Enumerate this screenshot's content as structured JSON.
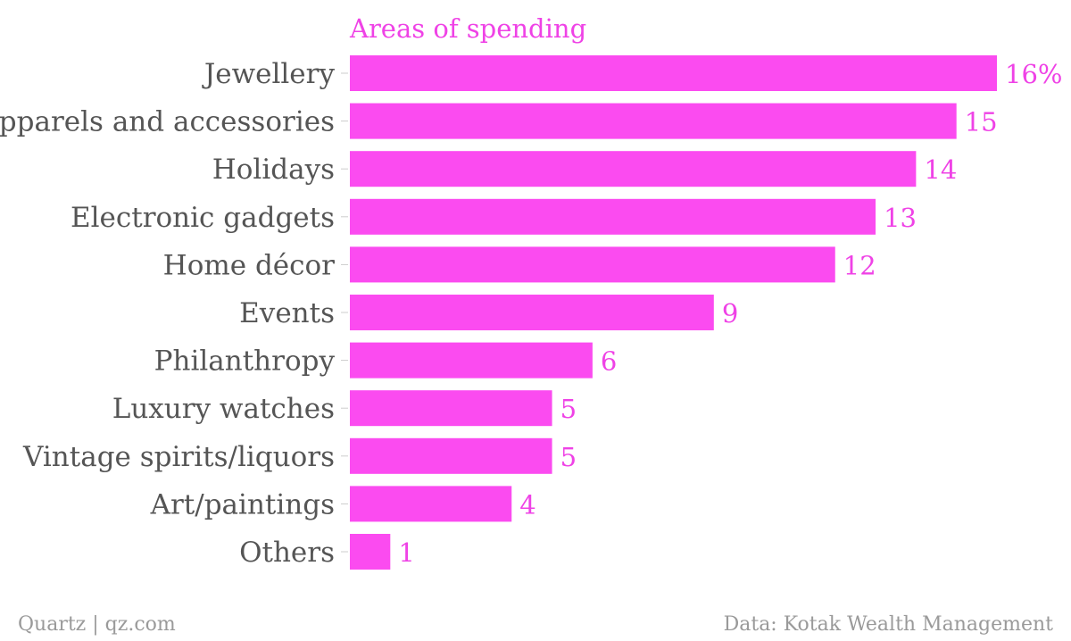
{
  "colors": {
    "bar": "#fb4bf0",
    "accent_text": "#ef42e6",
    "category_text": "#555555",
    "footer_text": "#9a9a9a"
  },
  "chart_data": {
    "type": "bar",
    "orientation": "horizontal",
    "title": "Areas of spending",
    "categories": [
      "Jewellery",
      "Apparels and accessories",
      "Holidays",
      "Electronic gadgets",
      "Home décor",
      "Events",
      "Philanthropy",
      "Luxury watches",
      "Vintage spirits/liquors",
      "Art/paintings",
      "Others"
    ],
    "values": [
      16,
      15,
      14,
      13,
      12,
      9,
      6,
      5,
      5,
      4,
      1
    ],
    "value_labels": [
      "16%",
      "15",
      "14",
      "13",
      "12",
      "9",
      "6",
      "5",
      "5",
      "4",
      "1"
    ],
    "xlim": [
      0,
      16
    ],
    "grid": false
  },
  "footer": {
    "source_left": "Quartz | qz.com",
    "source_right": "Data: Kotak Wealth Management"
  }
}
